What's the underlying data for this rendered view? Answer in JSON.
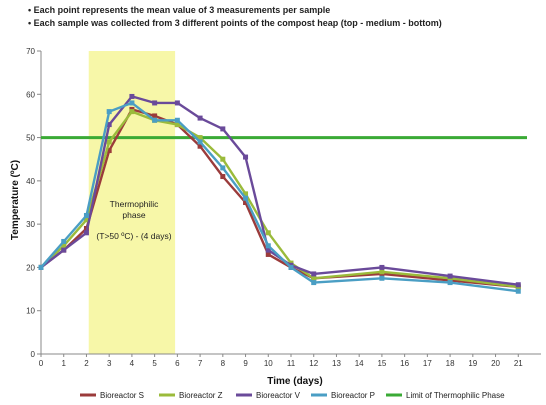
{
  "notes": [
    "• Each point represents the mean value of 3 measurements per sample",
    "• Each sample was collected from 3 different points of the compost heap (top - medium - bottom)"
  ],
  "chart_data": {
    "type": "line",
    "xlabel": "Time (days)",
    "ylabel": "Temperature (ºC)",
    "xlim": [
      0,
      22
    ],
    "ylim": [
      0,
      70
    ],
    "xticks": [
      0,
      1,
      2,
      3,
      4,
      5,
      6,
      7,
      8,
      9,
      10,
      11,
      12,
      13,
      14,
      15,
      16,
      17,
      18,
      19,
      20,
      21
    ],
    "yticks": [
      0,
      10,
      20,
      30,
      40,
      50,
      60,
      70
    ],
    "grid": false,
    "legend_position": "bottom",
    "highlight_region": {
      "x_start": 2.1,
      "x_end": 5.9,
      "color": "#f7f7a8"
    },
    "annotation": {
      "title_line1": "Thermophilic",
      "title_line2": "phase",
      "detail": "(T>50 ºC) - (4 days)"
    },
    "threshold": {
      "name": "Limit of Thermophilic Phase",
      "value": 50,
      "color": "#3aaa35"
    },
    "series": [
      {
        "name": "Bioreactor S",
        "color": "#9b3b3b",
        "x": [
          0,
          1,
          2,
          3,
          4,
          5,
          6,
          7,
          8,
          9,
          10,
          11,
          12,
          15,
          18,
          21
        ],
        "y": [
          20,
          24,
          29,
          47,
          56.5,
          55,
          53,
          48,
          41,
          35,
          23,
          20,
          17.5,
          18.5,
          17,
          15.5
        ]
      },
      {
        "name": "Bioreactor Z",
        "color": "#9bbb3b",
        "x": [
          0,
          1,
          2,
          3,
          4,
          5,
          6,
          7,
          8,
          9,
          10,
          11,
          12,
          15,
          18,
          21
        ],
        "y": [
          20,
          25,
          31,
          49,
          56,
          54,
          53,
          50,
          45,
          37,
          28,
          21,
          17.5,
          19,
          17.5,
          15.5
        ]
      },
      {
        "name": "Bioreactor V",
        "color": "#6a4a9a",
        "x": [
          0,
          1,
          2,
          3,
          4,
          5,
          6,
          7,
          8,
          9,
          10,
          11,
          12,
          15,
          18,
          21
        ],
        "y": [
          20,
          24,
          28,
          53,
          59.5,
          58,
          58,
          54.5,
          52,
          45.5,
          24,
          20.5,
          18.5,
          20,
          18,
          16
        ]
      },
      {
        "name": "Bioreactor P",
        "color": "#4a9ec4",
        "x": [
          0,
          1,
          2,
          3,
          4,
          5,
          6,
          7,
          8,
          9,
          10,
          11,
          12,
          15,
          18,
          21
        ],
        "y": [
          20,
          26,
          32,
          56,
          58,
          54,
          54,
          49,
          43,
          36,
          25,
          20,
          16.5,
          17.5,
          16.5,
          14.5
        ]
      }
    ]
  }
}
